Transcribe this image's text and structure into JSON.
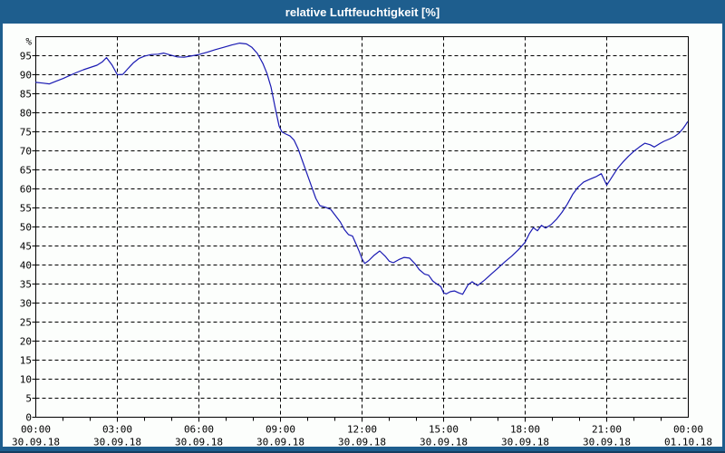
{
  "window": {
    "title": "relative Luftfeuchtigkeit [%]"
  },
  "colors": {
    "titlebar_bg": "#1e5e8e",
    "border": "#1e5e8e",
    "border_dark": "#143d60",
    "plot_bg": "#fcfefc",
    "line": "#1a1ab3",
    "grid": "#000000",
    "text": "#000000"
  },
  "chart_data": {
    "type": "line",
    "title": "relative Luftfeuchtigkeit [%]",
    "ylabel": "%",
    "ylim": [
      0,
      100
    ],
    "y_tick_labels": [
      0,
      5,
      10,
      15,
      20,
      25,
      30,
      35,
      40,
      45,
      50,
      55,
      60,
      65,
      70,
      75,
      80,
      85,
      90,
      95
    ],
    "xlim_hours": [
      0,
      24
    ],
    "x_minor_tick_hours": 1,
    "x_major_tick_hours": 3,
    "grid": "dashed",
    "legend_position": "none",
    "x_ticks": [
      {
        "time": "00:00",
        "date": "30.09.18"
      },
      {
        "time": "03:00",
        "date": "30.09.18"
      },
      {
        "time": "06:00",
        "date": "30.09.18"
      },
      {
        "time": "09:00",
        "date": "30.09.18"
      },
      {
        "time": "12:00",
        "date": "30.09.18"
      },
      {
        "time": "15:00",
        "date": "30.09.18"
      },
      {
        "time": "18:00",
        "date": "30.09.18"
      },
      {
        "time": "21:00",
        "date": "30.09.18"
      },
      {
        "time": "00:00",
        "date": "01.10.18"
      }
    ],
    "series": [
      {
        "name": "relative Luftfeuchtigkeit",
        "unit": "%",
        "points": [
          [
            0,
            88
          ],
          [
            0.25,
            87.8
          ],
          [
            0.5,
            87.6
          ],
          [
            0.75,
            88.3
          ],
          [
            1,
            89
          ],
          [
            1.25,
            89.8
          ],
          [
            1.5,
            90.6
          ],
          [
            1.75,
            91.3
          ],
          [
            2,
            91.9
          ],
          [
            2.25,
            92.5
          ],
          [
            2.45,
            93.4
          ],
          [
            2.6,
            94.5
          ],
          [
            2.8,
            92.6
          ],
          [
            3,
            90
          ],
          [
            3.2,
            90.1
          ],
          [
            3.4,
            91.7
          ],
          [
            3.6,
            93.2
          ],
          [
            3.8,
            94.3
          ],
          [
            4,
            94.9
          ],
          [
            4.25,
            95.3
          ],
          [
            4.5,
            95.4
          ],
          [
            4.7,
            95.7
          ],
          [
            4.95,
            95.2
          ],
          [
            5.2,
            94.7
          ],
          [
            5.45,
            94.6
          ],
          [
            5.7,
            94.9
          ],
          [
            6,
            95.3
          ],
          [
            6.3,
            95.9
          ],
          [
            6.6,
            96.6
          ],
          [
            6.9,
            97.2
          ],
          [
            7.2,
            97.8
          ],
          [
            7.5,
            98.3
          ],
          [
            7.75,
            98.1
          ],
          [
            7.95,
            97.2
          ],
          [
            8.15,
            95.6
          ],
          [
            8.35,
            93
          ],
          [
            8.5,
            90.4
          ],
          [
            8.65,
            86.8
          ],
          [
            8.8,
            81.5
          ],
          [
            8.95,
            76.5
          ],
          [
            9.05,
            75
          ],
          [
            9.2,
            74.4
          ],
          [
            9.35,
            73.9
          ],
          [
            9.5,
            72.8
          ],
          [
            9.65,
            70.5
          ],
          [
            9.8,
            67.5
          ],
          [
            10,
            63.5
          ],
          [
            10.15,
            60.5
          ],
          [
            10.3,
            57.5
          ],
          [
            10.45,
            55.6
          ],
          [
            10.65,
            55.2
          ],
          [
            10.85,
            54.6
          ],
          [
            11,
            53.2
          ],
          [
            11.2,
            51.3
          ],
          [
            11.35,
            49.3
          ],
          [
            11.5,
            48
          ],
          [
            11.65,
            47.6
          ],
          [
            11.8,
            45.2
          ],
          [
            11.9,
            43.5
          ],
          [
            12,
            41.6
          ],
          [
            12.1,
            40.4
          ],
          [
            12.25,
            41.2
          ],
          [
            12.45,
            42.6
          ],
          [
            12.65,
            43.7
          ],
          [
            12.85,
            42.3
          ],
          [
            13,
            41
          ],
          [
            13.15,
            40.6
          ],
          [
            13.35,
            41.4
          ],
          [
            13.55,
            42
          ],
          [
            13.75,
            41.8
          ],
          [
            13.95,
            40.3
          ],
          [
            14.1,
            38.8
          ],
          [
            14.3,
            37.6
          ],
          [
            14.45,
            37.3
          ],
          [
            14.6,
            35.8
          ],
          [
            14.75,
            35
          ],
          [
            14.9,
            34.3
          ],
          [
            15,
            32.7
          ],
          [
            15.1,
            32.4
          ],
          [
            15.25,
            33
          ],
          [
            15.4,
            33.2
          ],
          [
            15.55,
            32.7
          ],
          [
            15.7,
            32.3
          ],
          [
            15.9,
            34.8
          ],
          [
            16.05,
            35.6
          ],
          [
            16.25,
            34.6
          ],
          [
            16.5,
            36
          ],
          [
            16.75,
            37.6
          ],
          [
            17,
            39.2
          ],
          [
            17.25,
            40.8
          ],
          [
            17.5,
            42.3
          ],
          [
            17.75,
            44
          ],
          [
            18,
            46
          ],
          [
            18.15,
            48.2
          ],
          [
            18.3,
            49.8
          ],
          [
            18.45,
            49
          ],
          [
            18.6,
            50.4
          ],
          [
            18.75,
            49.7
          ],
          [
            18.95,
            50.6
          ],
          [
            19.15,
            52
          ],
          [
            19.35,
            53.8
          ],
          [
            19.55,
            56
          ],
          [
            19.75,
            58.6
          ],
          [
            19.95,
            60.5
          ],
          [
            20.15,
            61.8
          ],
          [
            20.4,
            62.6
          ],
          [
            20.6,
            63.2
          ],
          [
            20.8,
            64
          ],
          [
            21,
            61
          ],
          [
            21.2,
            63.2
          ],
          [
            21.4,
            65.4
          ],
          [
            21.6,
            67.1
          ],
          [
            21.8,
            68.6
          ],
          [
            22,
            69.9
          ],
          [
            22.2,
            71
          ],
          [
            22.4,
            72
          ],
          [
            22.6,
            71.6
          ],
          [
            22.75,
            71
          ],
          [
            22.95,
            71.9
          ],
          [
            23.1,
            72.5
          ],
          [
            23.3,
            73.1
          ],
          [
            23.5,
            73.8
          ],
          [
            23.65,
            74.6
          ],
          [
            23.8,
            75.8
          ],
          [
            23.9,
            76.8
          ],
          [
            23.97,
            77.6
          ]
        ]
      }
    ]
  }
}
